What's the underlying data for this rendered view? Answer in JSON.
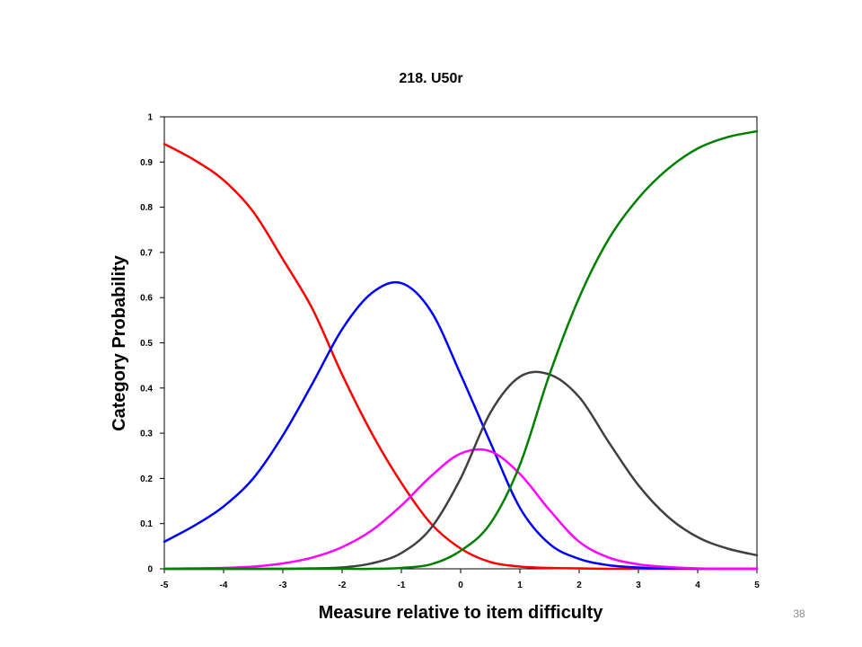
{
  "slide": {
    "page_number": "38"
  },
  "chart_data": {
    "type": "line",
    "title": "218. U50r",
    "xlabel": "Measure relative to item difficulty",
    "ylabel": "Category Probability",
    "xlim": [
      -5,
      5
    ],
    "ylim": [
      0,
      1
    ],
    "x_ticks": [
      "-5",
      "-4",
      "-3",
      "-2",
      "-1",
      "0",
      "1",
      "2",
      "3",
      "4",
      "5"
    ],
    "y_ticks": [
      "0",
      "0.1",
      "0.2",
      "0.3",
      "0.4",
      "0.5",
      "0.6",
      "0.7",
      "0.8",
      "0.9",
      "1"
    ],
    "grid": false,
    "legend": "none",
    "x": [
      -5,
      -4.5,
      -4,
      -3.5,
      -3,
      -2.5,
      -2,
      -1.5,
      -1,
      -0.5,
      0,
      0.5,
      1,
      1.5,
      2,
      2.5,
      3,
      3.5,
      4,
      4.5,
      5
    ],
    "series": [
      {
        "color": "#ff0000",
        "values": [
          0.94,
          0.905,
          0.86,
          0.79,
          0.685,
          0.575,
          0.43,
          0.3,
          0.19,
          0.1,
          0.045,
          0.015,
          0.005,
          0.002,
          0.001,
          0,
          0,
          0,
          0,
          0,
          0
        ]
      },
      {
        "color": "#0000ff",
        "values": [
          0.06,
          0.095,
          0.138,
          0.2,
          0.295,
          0.41,
          0.53,
          0.61,
          0.632,
          0.57,
          0.43,
          0.28,
          0.135,
          0.055,
          0.022,
          0.008,
          0.003,
          0.001,
          0,
          0,
          0
        ]
      },
      {
        "color": "#ff00ff",
        "values": [
          0,
          0.001,
          0.002,
          0.005,
          0.012,
          0.025,
          0.048,
          0.085,
          0.14,
          0.205,
          0.255,
          0.26,
          0.21,
          0.13,
          0.06,
          0.025,
          0.01,
          0.004,
          0.001,
          0,
          0
        ]
      },
      {
        "color": "#404040",
        "values": [
          0,
          0,
          0,
          0,
          0,
          0.001,
          0.003,
          0.012,
          0.035,
          0.09,
          0.2,
          0.345,
          0.425,
          0.43,
          0.38,
          0.28,
          0.185,
          0.115,
          0.07,
          0.045,
          0.03
        ]
      },
      {
        "color": "#008000",
        "values": [
          0,
          0,
          0,
          0,
          0,
          0,
          0,
          0,
          0.002,
          0.01,
          0.04,
          0.1,
          0.23,
          0.43,
          0.6,
          0.73,
          0.82,
          0.885,
          0.93,
          0.955,
          0.968
        ]
      }
    ]
  }
}
